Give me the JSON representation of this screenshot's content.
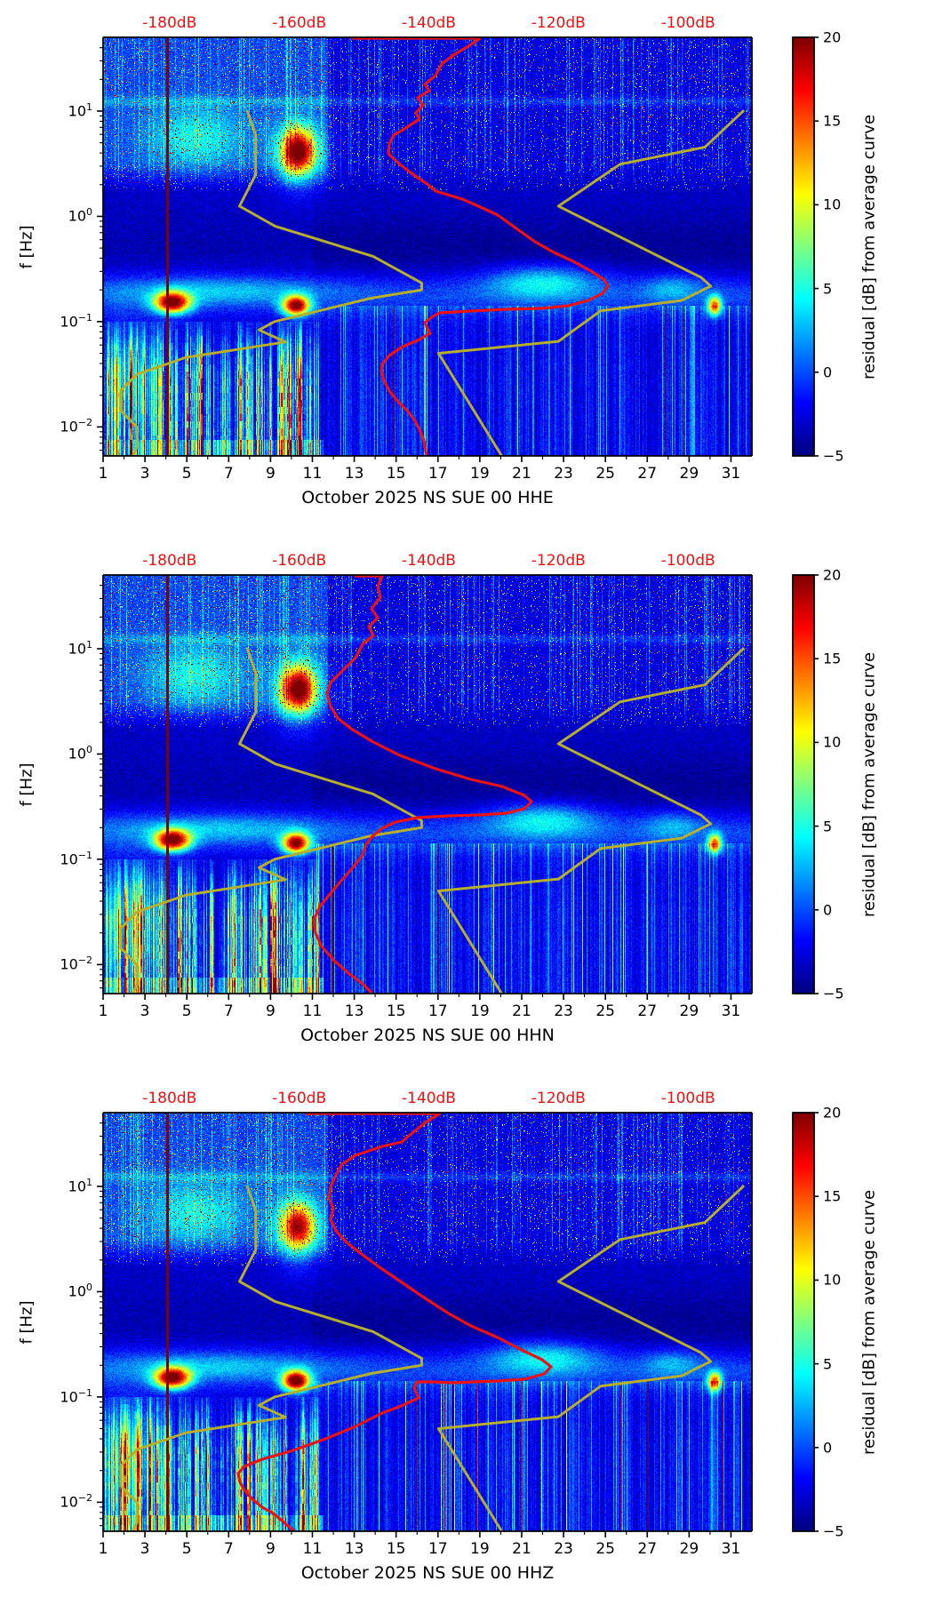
{
  "figure": {
    "background": "#ffffff",
    "y_axis_label": "f [Hz]",
    "y_tick_exponents": [
      1,
      0,
      -1,
      -2
    ],
    "x_tick_days": [
      1,
      3,
      5,
      7,
      9,
      11,
      13,
      15,
      17,
      19,
      21,
      23,
      25,
      27,
      29,
      31
    ],
    "top_axis": {
      "labels": [
        "-180dB",
        "-160dB",
        "-140dB",
        "-120dB",
        "-100dB"
      ],
      "dB_values": [
        -180,
        -160,
        -140,
        -120,
        -100
      ],
      "color": "#ee1111"
    },
    "colorbar": {
      "label": "residual [dB] from average curve",
      "tick_labels": [
        "20",
        "15",
        "10",
        "5",
        "0",
        "−5"
      ],
      "tick_values": [
        20,
        15,
        10,
        5,
        0,
        -5
      ],
      "vmin": -5,
      "vmax": 20
    }
  },
  "panels": [
    {
      "title": "October 2025 NS SUE 00 HHE",
      "seed": 101,
      "red_curve": [
        [
          281,
          1
        ],
        [
          424,
          1
        ],
        [
          411,
          10
        ],
        [
          394,
          20
        ],
        [
          381,
          30
        ],
        [
          374,
          43
        ],
        [
          362,
          53
        ],
        [
          367,
          60
        ],
        [
          354,
          68
        ],
        [
          360,
          76
        ],
        [
          352,
          85
        ],
        [
          356,
          92
        ],
        [
          339,
          103
        ],
        [
          327,
          110
        ],
        [
          322,
          120
        ],
        [
          321,
          131
        ],
        [
          334,
          143
        ],
        [
          347,
          153
        ],
        [
          366,
          166
        ],
        [
          374,
          173
        ],
        [
          404,
          182
        ],
        [
          429,
          193
        ],
        [
          444,
          200
        ],
        [
          469,
          218
        ],
        [
          486,
          230
        ],
        [
          509,
          243
        ],
        [
          527,
          251
        ],
        [
          549,
          263
        ],
        [
          564,
          273
        ],
        [
          568,
          280
        ],
        [
          562,
          288
        ],
        [
          546,
          296
        ],
        [
          524,
          302
        ],
        [
          494,
          305
        ],
        [
          454,
          306
        ],
        [
          414,
          308
        ],
        [
          379,
          310
        ],
        [
          371,
          314
        ],
        [
          362,
          321
        ],
        [
          365,
          328
        ],
        [
          368,
          333
        ],
        [
          354,
          341
        ],
        [
          337,
          348
        ],
        [
          322,
          358
        ],
        [
          314,
          368
        ],
        [
          313,
          376
        ],
        [
          316,
          386
        ],
        [
          322,
          398
        ],
        [
          332,
          410
        ],
        [
          342,
          420
        ],
        [
          350,
          430
        ],
        [
          356,
          441
        ],
        [
          361,
          454
        ],
        [
          364,
          471
        ]
      ],
      "tweaks": {
        "micro_b_amp": 22,
        "hf_blob_amp": 17,
        "curtain": 1.0,
        "right_yellow": 1.0
      }
    },
    {
      "title": "October 2025 NS SUE 00 HHN",
      "seed": 202,
      "red_curve": [
        [
          284,
          1
        ],
        [
          314,
          1
        ],
        [
          309,
          13
        ],
        [
          312,
          25
        ],
        [
          302,
          38
        ],
        [
          309,
          48
        ],
        [
          299,
          58
        ],
        [
          304,
          68
        ],
        [
          292,
          78
        ],
        [
          284,
          93
        ],
        [
          269,
          108
        ],
        [
          256,
          121
        ],
        [
          252,
          133
        ],
        [
          256,
          148
        ],
        [
          264,
          161
        ],
        [
          279,
          173
        ],
        [
          304,
          188
        ],
        [
          334,
          203
        ],
        [
          374,
          218
        ],
        [
          414,
          230
        ],
        [
          449,
          238
        ],
        [
          474,
          248
        ],
        [
          482,
          255
        ],
        [
          474,
          263
        ],
        [
          454,
          268
        ],
        [
          424,
          270
        ],
        [
          389,
          271
        ],
        [
          354,
          273
        ],
        [
          329,
          278
        ],
        [
          314,
          285
        ],
        [
          304,
          293
        ],
        [
          296,
          303
        ],
        [
          292,
          315
        ],
        [
          282,
          328
        ],
        [
          269,
          343
        ],
        [
          256,
          358
        ],
        [
          244,
          373
        ],
        [
          237,
          388
        ],
        [
          239,
          403
        ],
        [
          246,
          418
        ],
        [
          259,
          433
        ],
        [
          276,
          448
        ],
        [
          292,
          460
        ],
        [
          302,
          470
        ]
      ],
      "tweaks": {
        "micro_b_amp": 22,
        "hf_blob_amp": 17,
        "curtain": 1.0,
        "right_yellow": 1.0
      }
    },
    {
      "title": "October 2025 NS SUE 00 HHZ",
      "seed": 303,
      "red_curve": [
        [
          229,
          1
        ],
        [
          379,
          1
        ],
        [
          364,
          10
        ],
        [
          354,
          18
        ],
        [
          344,
          26
        ],
        [
          336,
          33
        ],
        [
          314,
          38
        ],
        [
          284,
          48
        ],
        [
          269,
          58
        ],
        [
          262,
          70
        ],
        [
          256,
          83
        ],
        [
          254,
          96
        ],
        [
          259,
          108
        ],
        [
          256,
          120
        ],
        [
          262,
          133
        ],
        [
          274,
          146
        ],
        [
          292,
          160
        ],
        [
          314,
          176
        ],
        [
          339,
          193
        ],
        [
          364,
          210
        ],
        [
          389,
          226
        ],
        [
          414,
          240
        ],
        [
          444,
          253
        ],
        [
          469,
          266
        ],
        [
          494,
          278
        ],
        [
          504,
          286
        ],
        [
          496,
          294
        ],
        [
          474,
          300
        ],
        [
          444,
          302
        ],
        [
          414,
          303
        ],
        [
          394,
          304
        ],
        [
          373,
          303
        ],
        [
          353,
          303
        ],
        [
          350,
          310
        ],
        [
          355,
          321
        ],
        [
          344,
          326
        ],
        [
          333,
          331
        ],
        [
          314,
          338
        ],
        [
          284,
          353
        ],
        [
          253,
          366
        ],
        [
          214,
          380
        ],
        [
          179,
          390
        ],
        [
          159,
          398
        ],
        [
          152,
          406
        ],
        [
          154,
          416
        ],
        [
          160,
          426
        ],
        [
          168,
          435
        ],
        [
          179,
          444
        ],
        [
          190,
          450
        ],
        [
          199,
          457
        ],
        [
          207,
          464
        ],
        [
          214,
          470
        ]
      ],
      "tweaks": {
        "micro_b_amp": 24,
        "hf_blob_amp": 14,
        "curtain": 0.92,
        "right_yellow": 1.7
      }
    }
  ],
  "chart_data": {
    "type": "heatmap",
    "subtype": "seismic-psd-residual-spectrogram",
    "n_panels": 3,
    "x": {
      "label_hidden": true,
      "unit": "day of month",
      "range": [
        1,
        32
      ],
      "ticks": [
        1,
        3,
        5,
        7,
        9,
        11,
        13,
        15,
        17,
        19,
        21,
        23,
        25,
        27,
        29,
        31
      ]
    },
    "y": {
      "label": "f [Hz]",
      "scale": "log",
      "range": [
        0.0053,
        50.2
      ],
      "major_ticks": [
        10,
        1,
        0.1,
        0.01
      ]
    },
    "color": {
      "label": "residual [dB] from average curve",
      "colormap": "jet",
      "range": [
        -5,
        20
      ],
      "ticks": [
        20,
        15,
        10,
        5,
        0,
        -5
      ]
    },
    "top_axis": {
      "unit": "dB (PSD)",
      "ticks": [
        -180,
        -160,
        -140,
        -120,
        -100
      ],
      "maps_overlay_curves": true
    },
    "panel_titles": [
      "October 2025 NS SUE 00 HHE",
      "October 2025 NS SUE 00 HHN",
      "October 2025 NS SUE 00 HHZ"
    ],
    "overlay_curves": {
      "red": "station median PSD vs frequency, plotted against top dB axis (pixel polylines in panels[].red_curve)",
      "olive": "Peterson new low / high noise models (NLNM, NHNM), plotted against top dB axis"
    },
    "axis_mapping": {
      "dB_to_plot_u": "u = (dB + 190.25) / 100.1  (u: 0..1 across plot width)",
      "logf_to_plot_v": "v_px = (1.7004 - log10(f)) * 118.47  (from panel top, height 471px)"
    },
    "NLNM_period_dB": [
      [
        0.1,
        -168.0
      ],
      [
        0.17,
        -166.7
      ],
      [
        0.4,
        -166.7
      ],
      [
        0.8,
        -169.2
      ],
      [
        1.24,
        -163.7
      ],
      [
        2.4,
        -148.6
      ],
      [
        4.3,
        -141.1
      ],
      [
        5.0,
        -141.1
      ],
      [
        6.0,
        -149.0
      ],
      [
        10.0,
        -163.8
      ],
      [
        12.0,
        -166.2
      ],
      [
        15.6,
        -162.1
      ],
      [
        21.9,
        -177.5
      ],
      [
        31.6,
        -185.0
      ],
      [
        45.0,
        -187.5
      ],
      [
        70.0,
        -187.5
      ],
      [
        101.0,
        -185.0
      ],
      [
        154.0,
        -185.0
      ],
      [
        328.0,
        -187.5
      ]
    ],
    "NHNM_period_dB": [
      [
        0.1,
        -91.5
      ],
      [
        0.22,
        -97.4
      ],
      [
        0.32,
        -110.5
      ],
      [
        0.8,
        -120.0
      ],
      [
        3.8,
        -98.0
      ],
      [
        4.6,
        -96.5
      ],
      [
        6.3,
        -101.0
      ],
      [
        7.9,
        -113.5
      ],
      [
        15.4,
        -120.0
      ],
      [
        20.0,
        -138.5
      ],
      [
        354.8,
        -126.0
      ]
    ],
    "notable_features": [
      "dark-red vertical line at day ~4.05 spanning all frequencies (all panels)",
      "red blob near 4 Hz, days 9-11.5",
      "dark-red secondary-microseism blobs at ~0.15 Hz, days 3.4-5.2 and 9.5-11",
      "red/yellow low-frequency 'curtain' (f < 0.1 Hz) on days 1-11",
      "bright spot at day ~30.2, f ~0.14 Hz",
      "yellow patch ~0.2-0.3 Hz on days 19-25",
      "sparse cyan/yellow vertical streaks on right half"
    ]
  },
  "colors": {
    "red": "#ee1111",
    "olive": "#b8ae2a",
    "axis": "#000000"
  }
}
